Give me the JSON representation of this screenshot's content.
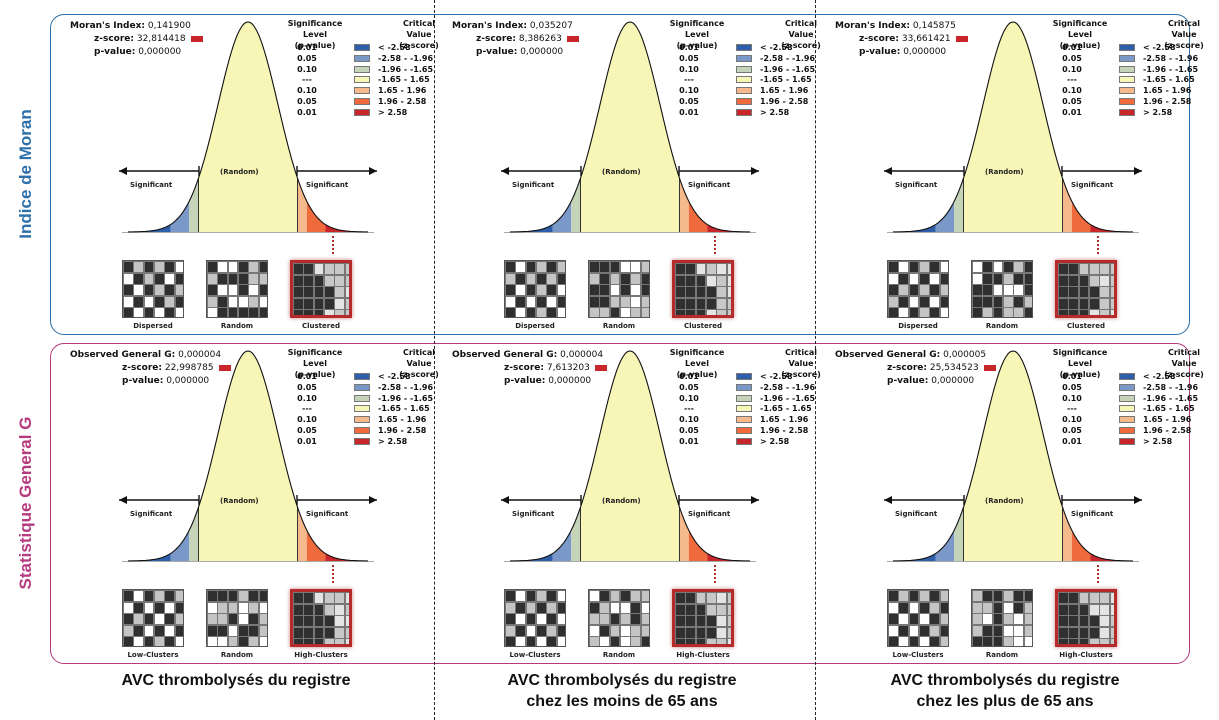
{
  "rows": [
    {
      "title": "Indice de Moran",
      "title_color": "#2d6fa8",
      "index_label": "Moran's Index:",
      "map_labels": [
        "Dispersed",
        "Random",
        "Clustered"
      ],
      "panels": [
        {
          "index_value": "0,141900",
          "z_score": "32,814418",
          "p_value": "0,000000"
        },
        {
          "index_value": "0,035207",
          "z_score": "8,386263",
          "p_value": "0,000000"
        },
        {
          "index_value": "0,145875",
          "z_score": "33,661421",
          "p_value": "0,000000"
        }
      ]
    },
    {
      "title": "Statistique General G",
      "title_color": "#b53a7e",
      "index_label": "Observed General G:",
      "map_labels": [
        "Low-Clusters",
        "Random",
        "High-Clusters"
      ],
      "panels": [
        {
          "index_value": "0,000004",
          "z_score": "22,998785",
          "p_value": "0,000000"
        },
        {
          "index_value": "0,000004",
          "z_score": "7,613203",
          "p_value": "0,000000"
        },
        {
          "index_value": "0,000005",
          "z_score": "25,534523",
          "p_value": "0,000000"
        }
      ]
    }
  ],
  "z_label": "z-score:",
  "p_label": "p-value:",
  "legend": {
    "sig_header_1": "Significance Level",
    "sig_header_2": "(p-value)",
    "crit_header_1": "Critical Value",
    "crit_header_2": "(z-score)",
    "rows": [
      {
        "sig": "0.01",
        "crit": "< -2.58",
        "color": "#2e5fa8"
      },
      {
        "sig": "0.05",
        "crit": "-2.58 - -1.96",
        "color": "#7a98c8"
      },
      {
        "sig": "0.10",
        "crit": "-1.96 - -1.65",
        "color": "#c5d3b9"
      },
      {
        "sig": "---",
        "crit": "-1.65 - 1.65",
        "color": "#f8f6b6"
      },
      {
        "sig": "0.10",
        "crit": "1.65 - 1.96",
        "color": "#f6b98c"
      },
      {
        "sig": "0.05",
        "crit": "1.96 - 2.58",
        "color": "#ef6a3d"
      },
      {
        "sig": "0.01",
        "crit": "> 2.58",
        "color": "#c8262b"
      }
    ]
  },
  "curve": {
    "significant_label": "Significant",
    "random_label": "(Random)"
  },
  "columns": [
    {
      "line1": "AVC thrombolysés du registre",
      "line2": ""
    },
    {
      "line1": "AVC thrombolysés du registre",
      "line2": "chez les moins de 65 ans"
    },
    {
      "line1": "AVC thrombolysés du registre",
      "line2": "chez les plus de 65 ans"
    }
  ]
}
